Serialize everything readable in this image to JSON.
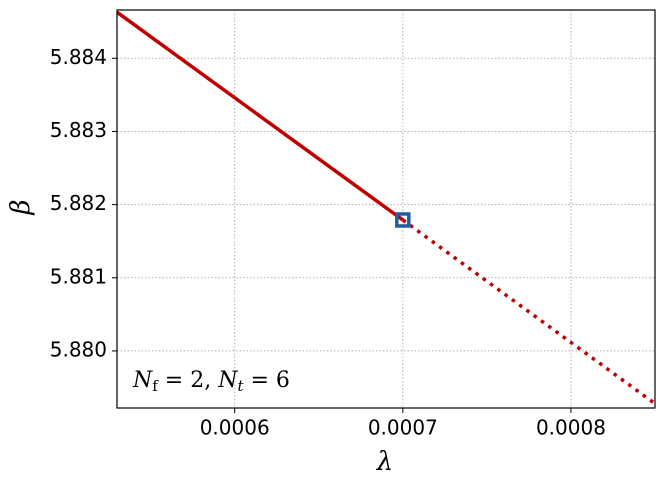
{
  "chart_data": {
    "type": "line",
    "xlabel": "λ",
    "ylabel": "β",
    "annotation": [
      "N",
      "f",
      " = 2, ",
      "N",
      "t",
      " = 6"
    ],
    "series": [
      {
        "color": "#c00000",
        "style": "solid",
        "x": [
          0.00053,
          0.0007
        ],
        "values": [
          5.88463,
          5.88179
        ]
      },
      {
        "color": "#c00000",
        "style": "dotted",
        "x": [
          0.0007,
          0.00085
        ],
        "values": [
          5.88179,
          5.87928
        ]
      },
      {
        "color": "#1f5fa0",
        "style": "marker",
        "x": [
          0.0007
        ],
        "values": [
          5.88179
        ]
      }
    ],
    "xlim": [
      0.00053,
      0.00085
    ],
    "xticks": [
      0.0006,
      0.0007,
      0.0008
    ],
    "ylim": [
      5.87922,
      5.88466
    ],
    "yticks": [
      {
        "value": 5.88,
        "label": "5.880"
      },
      5.881,
      5.882,
      5.883,
      5.884
    ],
    "grid": true
  }
}
